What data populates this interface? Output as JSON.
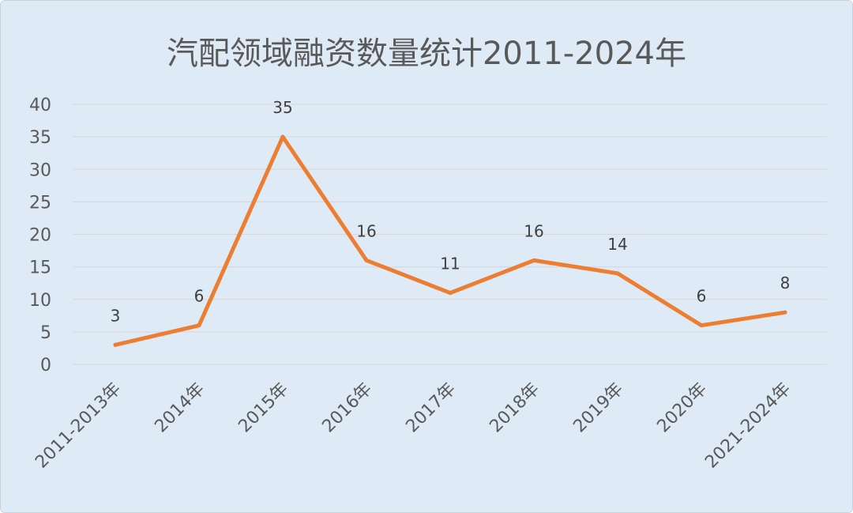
{
  "chart_data": {
    "type": "line",
    "title": "汽配领域融资数量统计2011-2024年",
    "categories": [
      "2011-2013年",
      "2014年",
      "2015年",
      "2016年",
      "2017年",
      "2018年",
      "2019年",
      "2020年",
      "2021-2024年"
    ],
    "series": [
      {
        "values": [
          3,
          6,
          35,
          16,
          11,
          16,
          14,
          6,
          8
        ],
        "color": "#ed7d31"
      }
    ],
    "yticks": [
      "0",
      "5",
      "10",
      "15",
      "20",
      "25",
      "30",
      "35",
      "40"
    ],
    "ylim": [
      0,
      40
    ],
    "grid": true,
    "legend": "none",
    "background": "#deebf7",
    "gridline_color": "#d9d9d9"
  }
}
